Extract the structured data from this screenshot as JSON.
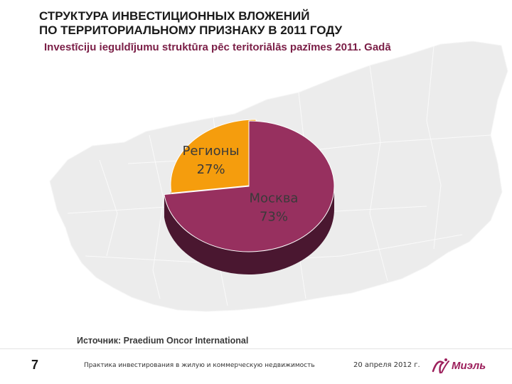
{
  "slide": {
    "title_line1": "СТРУКТУРА ИНВЕСТИЦИОННЫХ ВЛОЖЕНИЙ",
    "title_line2": "ПО ТЕРРИТОРИАЛЬНОМУ ПРИЗНАКУ В 2011 ГОДУ",
    "subtitle": "Investīciju ieguldījumu struktūra pēc teritoriālās pazīmes 2011. Gadā",
    "source": "Источник: Praedium Oncor International",
    "page_number": "7",
    "footer_text": "Практика инвестирования в жилую и коммерческую недвижимость",
    "footer_date": "20 апреля 2012 г.",
    "logo_text": "Миэль"
  },
  "chart_data": {
    "type": "pie",
    "title": "",
    "slices": [
      {
        "label": "Москва",
        "value": 73,
        "display": "73%",
        "color": "#97305f",
        "side_color": "#4a1730",
        "exploded": false
      },
      {
        "label": "Регионы",
        "value": 27,
        "display": "27%",
        "color": "#f59d0d",
        "side_color": "#6e4200",
        "exploded": true
      }
    ]
  }
}
